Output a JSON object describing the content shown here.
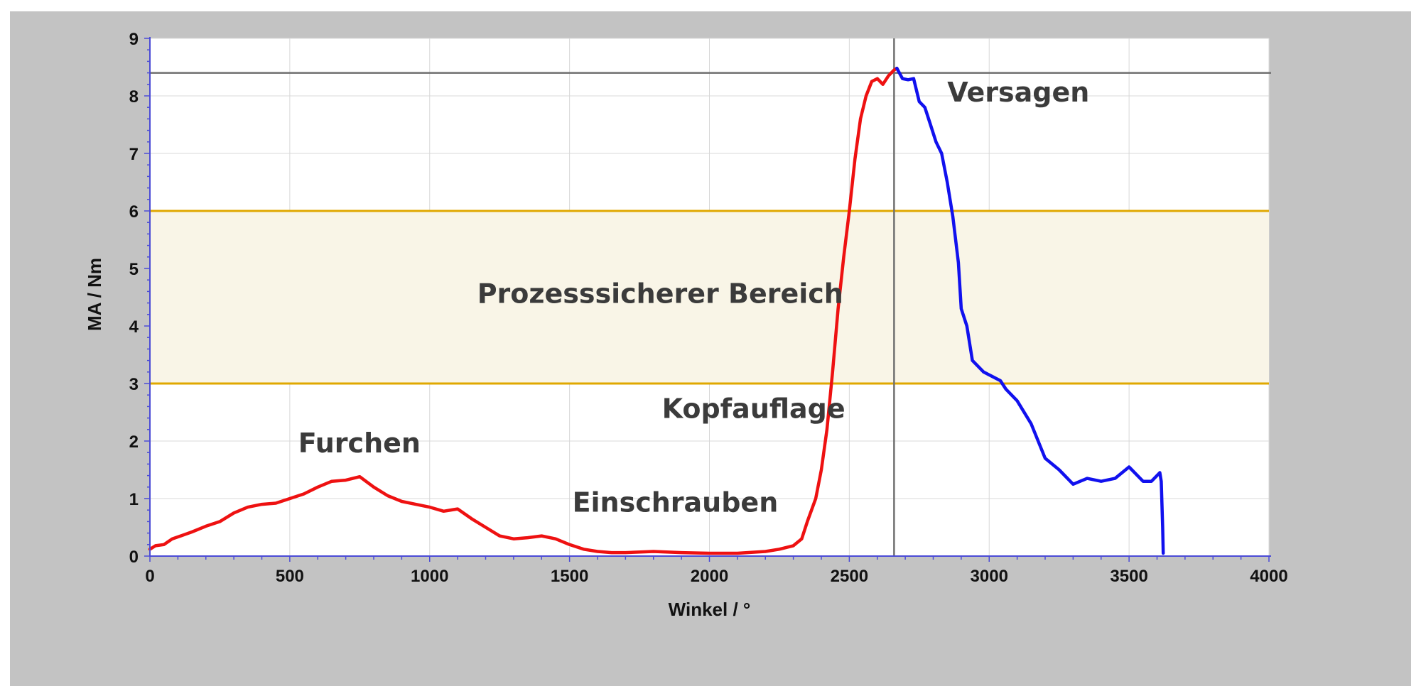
{
  "chart_data": {
    "type": "line",
    "xlabel": "Winkel / °",
    "ylabel": "MA / Nm",
    "xlim": [
      0,
      4000
    ],
    "ylim": [
      0,
      9
    ],
    "x_ticks": [
      "0",
      "500",
      "1000",
      "1500",
      "2000",
      "2500",
      "3000",
      "3500",
      "4000"
    ],
    "y_ticks": [
      "0",
      "1",
      "2",
      "3",
      "4",
      "5",
      "6",
      "7",
      "8",
      "9"
    ],
    "grid": true,
    "band": {
      "from": 3,
      "to": 6,
      "fill": "#f9f5e7",
      "line_color": "#e0a800"
    },
    "max_line_y": 8.4,
    "vertical_line_x": 2660,
    "reference_line_color": "#707070",
    "series": [
      {
        "color": "#ee1111",
        "x": [
          0,
          20,
          50,
          80,
          110,
          150,
          200,
          250,
          300,
          350,
          400,
          450,
          500,
          550,
          600,
          650,
          700,
          750,
          800,
          850,
          900,
          950,
          1000,
          1050,
          1100,
          1150,
          1200,
          1250,
          1300,
          1350,
          1400,
          1450,
          1500,
          1550,
          1600,
          1650,
          1700,
          1800,
          1900,
          2000,
          2100,
          2200,
          2250,
          2300,
          2330,
          2350,
          2380,
          2400,
          2420,
          2440,
          2460,
          2480,
          2500,
          2520,
          2540,
          2560,
          2580,
          2600,
          2620,
          2640,
          2660,
          2670
        ],
        "y": [
          0.12,
          0.18,
          0.2,
          0.3,
          0.35,
          0.42,
          0.52,
          0.6,
          0.75,
          0.85,
          0.9,
          0.92,
          1.0,
          1.08,
          1.2,
          1.3,
          1.32,
          1.38,
          1.2,
          1.05,
          0.95,
          0.9,
          0.85,
          0.78,
          0.82,
          0.65,
          0.5,
          0.35,
          0.3,
          0.32,
          0.35,
          0.3,
          0.2,
          0.12,
          0.08,
          0.06,
          0.06,
          0.08,
          0.06,
          0.05,
          0.05,
          0.08,
          0.12,
          0.18,
          0.3,
          0.6,
          1.0,
          1.5,
          2.2,
          3.2,
          4.3,
          5.2,
          6.0,
          6.9,
          7.6,
          8.0,
          8.25,
          8.3,
          8.2,
          8.35,
          8.45,
          8.48
        ]
      },
      {
        "color": "#1111ee",
        "x": [
          2670,
          2690,
          2710,
          2730,
          2750,
          2770,
          2790,
          2810,
          2830,
          2850,
          2870,
          2890,
          2900,
          2920,
          2940,
          2960,
          2980,
          3000,
          3040,
          3060,
          3100,
          3150,
          3200,
          3250,
          3300,
          3350,
          3400,
          3450,
          3500,
          3550,
          3580,
          3600,
          3610,
          3615,
          3620,
          3622
        ],
        "y": [
          8.48,
          8.3,
          8.28,
          8.3,
          7.9,
          7.8,
          7.5,
          7.2,
          7.0,
          6.5,
          5.9,
          5.1,
          4.3,
          4.0,
          3.4,
          3.3,
          3.2,
          3.15,
          3.05,
          2.9,
          2.7,
          2.3,
          1.7,
          1.5,
          1.25,
          1.35,
          1.3,
          1.35,
          1.55,
          1.3,
          1.3,
          1.4,
          1.45,
          1.3,
          0.5,
          0.05
        ]
      }
    ],
    "annotations": [
      {
        "text": "Versagen",
        "x": 2850,
        "y": 7.9
      },
      {
        "text": "Prozesssicherer Bereich",
        "x": 1170,
        "y": 4.4
      },
      {
        "text": "Kopfauflage",
        "x": 1830,
        "y": 2.4
      },
      {
        "text": "Furchen",
        "x": 530,
        "y": 1.8
      },
      {
        "text": "Einschrauben",
        "x": 1510,
        "y": 0.77
      }
    ]
  }
}
